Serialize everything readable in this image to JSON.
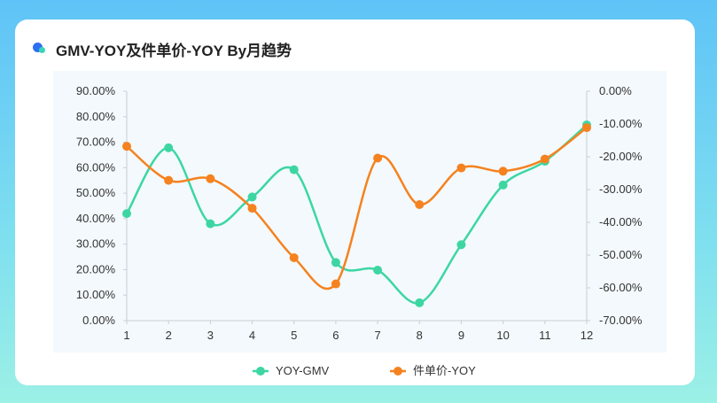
{
  "header": {
    "title": "GMV-YOY及件单价-YOY By月趋势"
  },
  "colors": {
    "gmv": "#3dd6a3",
    "price": "#f5821f",
    "plot_bg": "#f3f9fc",
    "axis": "#c7cfd6",
    "text": "#333333"
  },
  "chart_data": {
    "type": "line",
    "x": [
      "1",
      "2",
      "3",
      "4",
      "5",
      "6",
      "7",
      "8",
      "9",
      "10",
      "11",
      "12"
    ],
    "y_left": {
      "min": 0,
      "max": 90,
      "ticks": [
        "0.00%",
        "10.00%",
        "20.00%",
        "30.00%",
        "40.00%",
        "50.00%",
        "60.00%",
        "70.00%",
        "80.00%",
        "90.00%"
      ]
    },
    "y_right": {
      "min": -70,
      "max": 0,
      "ticks": [
        "-70.00%",
        "-60.00%",
        "-50.00%",
        "-40.00%",
        "-30.00%",
        "-20.00%",
        "-10.00%",
        "0.00%"
      ]
    },
    "series": [
      {
        "name": "YOY-GMV",
        "axis": "left",
        "color": "#3dd6a3",
        "values": [
          42.0,
          67.8,
          38.0,
          48.5,
          59.2,
          22.8,
          19.8,
          7.0,
          29.8,
          53.2,
          62.5,
          76.8
        ]
      },
      {
        "name": "件单价-YOY",
        "axis": "right",
        "color": "#f5821f",
        "values": [
          -16.8,
          -27.2,
          -26.7,
          -35.7,
          -50.8,
          -58.8,
          -20.4,
          -34.6,
          -23.4,
          -24.4,
          -20.7,
          -11.1
        ]
      }
    ],
    "legend": {
      "position": "bottom"
    },
    "grid": false
  }
}
